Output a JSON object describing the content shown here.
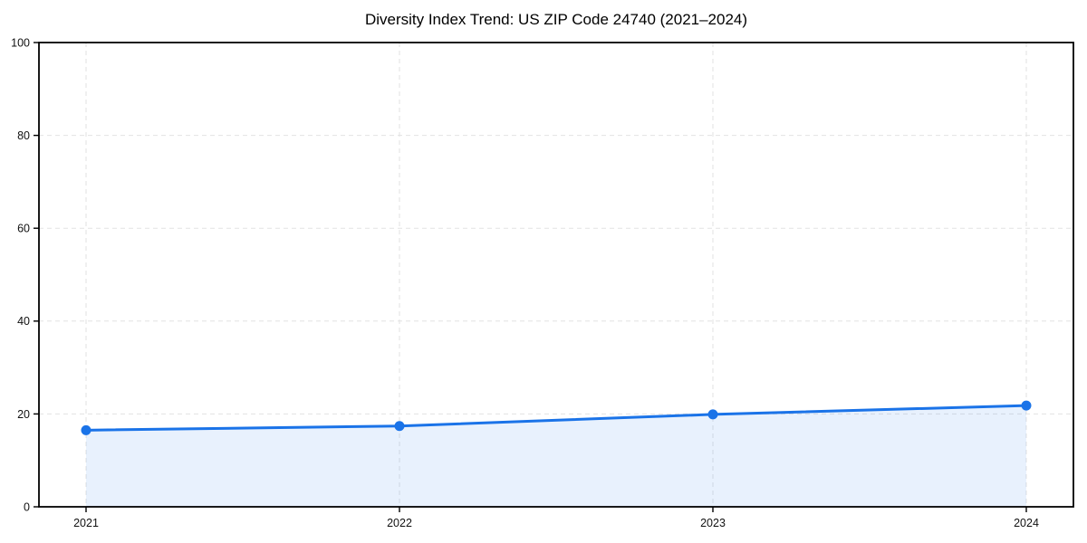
{
  "page": {
    "background": "#ffffff"
  },
  "chart_data": {
    "type": "line",
    "title": "Diversity Index Trend: US ZIP Code 24740 (2021–2024)",
    "x": [
      "2021",
      "2022",
      "2023",
      "2024"
    ],
    "series": [
      {
        "name": "Diversity Index",
        "values": [
          16.5,
          17.4,
          19.9,
          21.8
        ]
      }
    ],
    "xlabel": "",
    "ylabel": "",
    "ylim": [
      0,
      100
    ],
    "yticks": [
      0,
      20,
      40,
      60,
      80,
      100
    ],
    "grid": true,
    "grid_style": "dashed",
    "legend": "none",
    "marker": "circle",
    "area_fill": true,
    "colors": {
      "line": "#1a73e8",
      "marker": "#1a73e8",
      "fill": "#1a73e8",
      "fill_opacity": "0.1",
      "grid": "#e2e2e2",
      "spine": "#000000",
      "tick_label": "#111111",
      "title": "#000000"
    }
  }
}
